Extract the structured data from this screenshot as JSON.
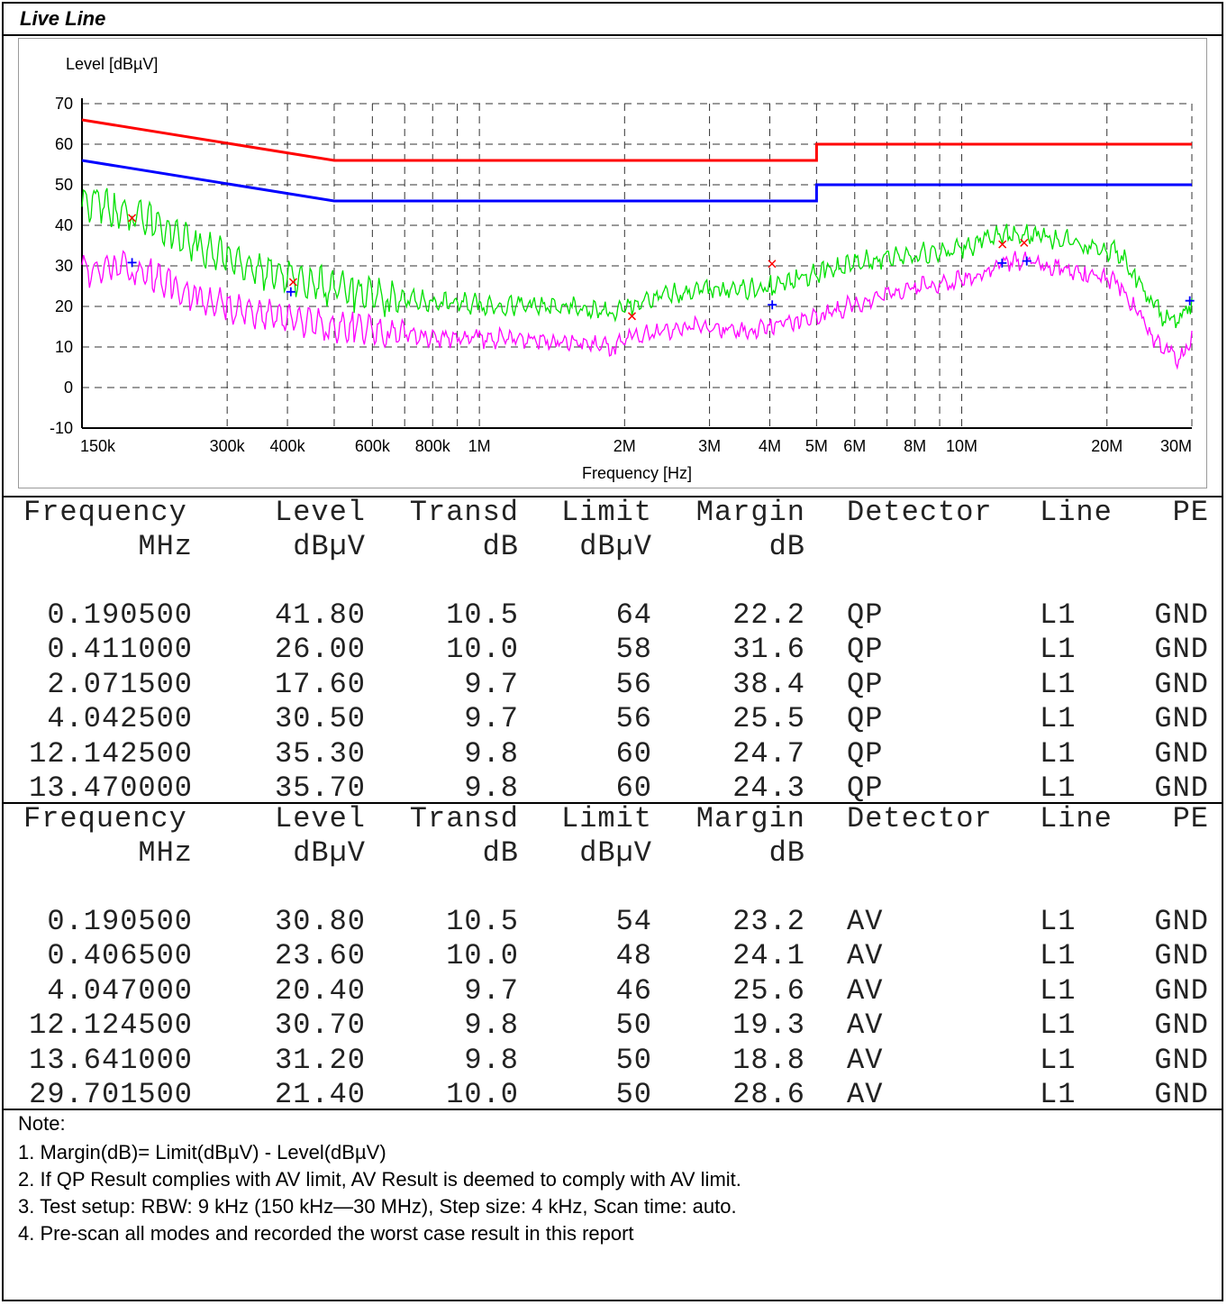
{
  "title": "Live Line",
  "chart_data": {
    "type": "line",
    "xscale": "log",
    "xlim": [
      150000,
      30000000
    ],
    "ylim": [
      -10,
      70
    ],
    "ylabel": "Level [dBµV]",
    "xlabel": "Frequency [Hz]",
    "yticks": [
      70,
      60,
      50,
      40,
      30,
      20,
      10,
      0,
      -10
    ],
    "xtick_labels": [
      {
        "x": 150000,
        "label": "150k"
      },
      {
        "x": 300000,
        "label": "300k"
      },
      {
        "x": 400000,
        "label": "400k"
      },
      {
        "x": 600000,
        "label": "600k"
      },
      {
        "x": 800000,
        "label": "800k"
      },
      {
        "x": 1000000,
        "label": "1M"
      },
      {
        "x": 2000000,
        "label": "2M"
      },
      {
        "x": 3000000,
        "label": "3M"
      },
      {
        "x": 4000000,
        "label": "4M"
      },
      {
        "x": 5000000,
        "label": "5M"
      },
      {
        "x": 6000000,
        "label": "6M"
      },
      {
        "x": 8000000,
        "label": "8M"
      },
      {
        "x": 10000000,
        "label": "10M"
      },
      {
        "x": 20000000,
        "label": "20M"
      },
      {
        "x": 30000000,
        "label": "30M"
      }
    ],
    "grid_x": [
      150000,
      300000,
      400000,
      500000,
      600000,
      700000,
      800000,
      900000,
      1000000,
      2000000,
      3000000,
      4000000,
      5000000,
      6000000,
      7000000,
      8000000,
      9000000,
      10000000,
      20000000,
      30000000
    ],
    "grid": true,
    "series": [
      {
        "key": "qp_limit",
        "color": "#ff0000",
        "width": 3,
        "points": [
          [
            150000,
            66
          ],
          [
            500000,
            56
          ],
          [
            5000000,
            56
          ],
          [
            5000000,
            60
          ],
          [
            30000000,
            60
          ]
        ]
      },
      {
        "key": "av_limit",
        "color": "#0000ff",
        "width": 3,
        "points": [
          [
            150000,
            56
          ],
          [
            500000,
            46
          ],
          [
            5000000,
            46
          ],
          [
            5000000,
            50
          ],
          [
            30000000,
            50
          ]
        ]
      },
      {
        "key": "peak_trace",
        "color": "#00e000",
        "width": 1.3,
        "points": [
          [
            150000,
            45
          ],
          [
            160000,
            46
          ],
          [
            175000,
            44
          ],
          [
            190500,
            43
          ],
          [
            210000,
            41
          ],
          [
            230000,
            38
          ],
          [
            260000,
            35
          ],
          [
            300000,
            32
          ],
          [
            350000,
            29
          ],
          [
            411000,
            27
          ],
          [
            480000,
            25
          ],
          [
            550000,
            23.5
          ],
          [
            650000,
            22
          ],
          [
            800000,
            21
          ],
          [
            1000000,
            20.5
          ],
          [
            1300000,
            20
          ],
          [
            1600000,
            19.5
          ],
          [
            1900000,
            18.5
          ],
          [
            2071500,
            20
          ],
          [
            2400000,
            22.5
          ],
          [
            2800000,
            24
          ],
          [
            3200000,
            24.5
          ],
          [
            3700000,
            24
          ],
          [
            4042500,
            25
          ],
          [
            4600000,
            27
          ],
          [
            5200000,
            28.5
          ],
          [
            6000000,
            30.5
          ],
          [
            7000000,
            32
          ],
          [
            8000000,
            33
          ],
          [
            9500000,
            34
          ],
          [
            11000000,
            36
          ],
          [
            12142500,
            37.5
          ],
          [
            13470000,
            38
          ],
          [
            15000000,
            37
          ],
          [
            18000000,
            35.5
          ],
          [
            21000000,
            33.5
          ],
          [
            23000000,
            27
          ],
          [
            25000000,
            20
          ],
          [
            27000000,
            16
          ],
          [
            29000000,
            17
          ],
          [
            30000000,
            22
          ]
        ]
      },
      {
        "key": "average_trace",
        "color": "#ff00ff",
        "width": 1.3,
        "points": [
          [
            150000,
            30
          ],
          [
            160000,
            28
          ],
          [
            175000,
            31
          ],
          [
            190500,
            29
          ],
          [
            210000,
            28
          ],
          [
            230000,
            25
          ],
          [
            260000,
            22
          ],
          [
            300000,
            20
          ],
          [
            350000,
            18
          ],
          [
            406500,
            17
          ],
          [
            480000,
            15.5
          ],
          [
            550000,
            14.5
          ],
          [
            650000,
            13.5
          ],
          [
            800000,
            12.5
          ],
          [
            1000000,
            12
          ],
          [
            1300000,
            12
          ],
          [
            1600000,
            11
          ],
          [
            1900000,
            10
          ],
          [
            2071500,
            12
          ],
          [
            2400000,
            14
          ],
          [
            2800000,
            15
          ],
          [
            3200000,
            14.5
          ],
          [
            3700000,
            14
          ],
          [
            4047000,
            15
          ],
          [
            4600000,
            16.5
          ],
          [
            5200000,
            18
          ],
          [
            6000000,
            20.5
          ],
          [
            7000000,
            23
          ],
          [
            8000000,
            25
          ],
          [
            9500000,
            26
          ],
          [
            11000000,
            28
          ],
          [
            12124500,
            30.5
          ],
          [
            13641000,
            31.5
          ],
          [
            15000000,
            30
          ],
          [
            18000000,
            28
          ],
          [
            21000000,
            26
          ],
          [
            23000000,
            19
          ],
          [
            25000000,
            12
          ],
          [
            27000000,
            8
          ],
          [
            29000000,
            7
          ],
          [
            30000000,
            14
          ]
        ]
      }
    ],
    "qp_markers": [
      [
        190500,
        41.8
      ],
      [
        411000,
        26.0
      ],
      [
        2071500,
        17.6
      ],
      [
        4042500,
        30.5
      ],
      [
        12142500,
        35.3
      ],
      [
        13470000,
        35.7
      ]
    ],
    "av_markers": [
      [
        190500,
        30.8
      ],
      [
        406500,
        23.6
      ],
      [
        4047000,
        20.4
      ],
      [
        12124500,
        30.7
      ],
      [
        13641000,
        31.2
      ],
      [
        29701500,
        21.4
      ]
    ]
  },
  "tables": [
    {
      "headers": [
        "Frequency",
        "Level",
        "Transd",
        "Limit",
        "Margin",
        "Detector",
        "Line",
        "PE"
      ],
      "units": [
        "MHz",
        "dBµV",
        "dB",
        "dBµV",
        "dB",
        "",
        "",
        ""
      ],
      "rows": [
        [
          "0.190500",
          "41.80",
          "10.5",
          "64",
          "22.2",
          "QP",
          "L1",
          "GND"
        ],
        [
          "0.411000",
          "26.00",
          "10.0",
          "58",
          "31.6",
          "QP",
          "L1",
          "GND"
        ],
        [
          "2.071500",
          "17.60",
          "9.7",
          "56",
          "38.4",
          "QP",
          "L1",
          "GND"
        ],
        [
          "4.042500",
          "30.50",
          "9.7",
          "56",
          "25.5",
          "QP",
          "L1",
          "GND"
        ],
        [
          "12.142500",
          "35.30",
          "9.8",
          "60",
          "24.7",
          "QP",
          "L1",
          "GND"
        ],
        [
          "13.470000",
          "35.70",
          "9.8",
          "60",
          "24.3",
          "QP",
          "L1",
          "GND"
        ]
      ]
    },
    {
      "headers": [
        "Frequency",
        "Level",
        "Transd",
        "Limit",
        "Margin",
        "Detector",
        "Line",
        "PE"
      ],
      "units": [
        "MHz",
        "dBµV",
        "dB",
        "dBµV",
        "dB",
        "",
        "",
        ""
      ],
      "rows": [
        [
          "0.190500",
          "30.80",
          "10.5",
          "54",
          "23.2",
          "AV",
          "L1",
          "GND"
        ],
        [
          "0.406500",
          "23.60",
          "10.0",
          "48",
          "24.1",
          "AV",
          "L1",
          "GND"
        ],
        [
          "4.047000",
          "20.40",
          "9.7",
          "46",
          "25.6",
          "AV",
          "L1",
          "GND"
        ],
        [
          "12.124500",
          "30.70",
          "9.8",
          "50",
          "19.3",
          "AV",
          "L1",
          "GND"
        ],
        [
          "13.641000",
          "31.20",
          "9.8",
          "50",
          "18.8",
          "AV",
          "L1",
          "GND"
        ],
        [
          "29.701500",
          "21.40",
          "10.0",
          "50",
          "28.6",
          "AV",
          "L1",
          "GND"
        ]
      ]
    }
  ],
  "notes": {
    "heading": "Note:",
    "lines": [
      "1. Margin(dB)= Limit(dBµV) - Level(dBµV)",
      "2. If QP Result complies with AV limit, AV Result is deemed to comply with AV limit.",
      "3. Test setup: RBW: 9 kHz (150 kHz—30 MHz), Step size: 4 kHz, Scan time: auto.",
      "4. Pre-scan all modes and recorded the worst case result in this report"
    ]
  }
}
